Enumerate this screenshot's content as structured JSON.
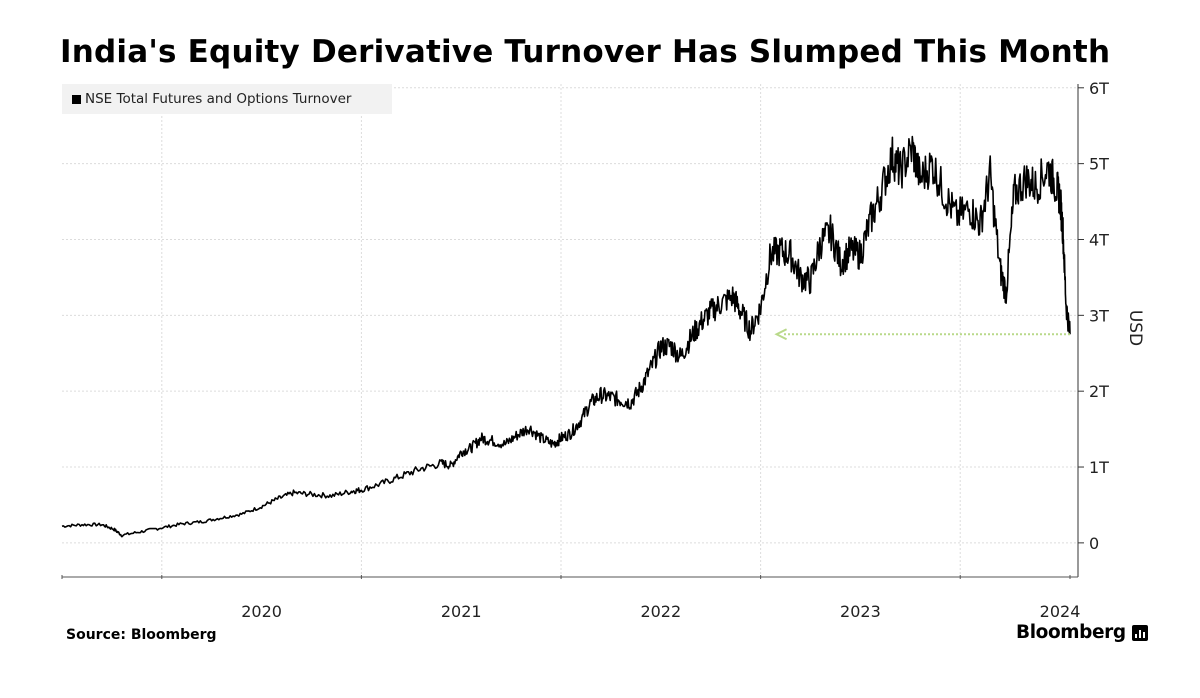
{
  "chart_data": {
    "type": "line",
    "title": "India's Equity Derivative Turnover Has Slumped This Month",
    "ylabel": "USD",
    "xlabel": "",
    "ylim": [
      -0.45,
      6.05
    ],
    "y_ticks": [
      {
        "value": 0,
        "label": "0"
      },
      {
        "value": 1,
        "label": "1T"
      },
      {
        "value": 2,
        "label": "2T"
      },
      {
        "value": 3,
        "label": "3T"
      },
      {
        "value": 4,
        "label": "4T"
      },
      {
        "value": 5,
        "label": "5T"
      },
      {
        "value": 6,
        "label": "6T"
      }
    ],
    "x_ticks": [
      {
        "value": 2020,
        "label": "2020"
      },
      {
        "value": 2021,
        "label": "2021"
      },
      {
        "value": 2022,
        "label": "2022"
      },
      {
        "value": 2023,
        "label": "2023"
      },
      {
        "value": 2024,
        "label": "2024"
      }
    ],
    "xlim": [
      2019.5,
      2024.55
    ],
    "grid": true,
    "legend_position": "top-left",
    "series": [
      {
        "name": "NSE Total Futures and Options Turnover",
        "color": "#000000",
        "points": [
          [
            2019.5,
            0.22
          ],
          [
            2019.6,
            0.24
          ],
          [
            2019.7,
            0.24
          ],
          [
            2019.76,
            0.18
          ],
          [
            2019.8,
            0.1
          ],
          [
            2019.9,
            0.15
          ],
          [
            2020.0,
            0.2
          ],
          [
            2020.1,
            0.25
          ],
          [
            2020.2,
            0.28
          ],
          [
            2020.3,
            0.33
          ],
          [
            2020.4,
            0.38
          ],
          [
            2020.5,
            0.48
          ],
          [
            2020.58,
            0.58
          ],
          [
            2020.66,
            0.66
          ],
          [
            2020.75,
            0.64
          ],
          [
            2020.85,
            0.62
          ],
          [
            2020.95,
            0.68
          ],
          [
            2021.0,
            0.7
          ],
          [
            2021.1,
            0.78
          ],
          [
            2021.2,
            0.88
          ],
          [
            2021.3,
            0.98
          ],
          [
            2021.4,
            1.05
          ],
          [
            2021.45,
            1.02
          ],
          [
            2021.5,
            1.2
          ],
          [
            2021.55,
            1.25
          ],
          [
            2021.6,
            1.38
          ],
          [
            2021.65,
            1.35
          ],
          [
            2021.72,
            1.3
          ],
          [
            2021.78,
            1.42
          ],
          [
            2021.84,
            1.52
          ],
          [
            2021.9,
            1.38
          ],
          [
            2021.96,
            1.3
          ],
          [
            2022.0,
            1.38
          ],
          [
            2022.05,
            1.45
          ],
          [
            2022.1,
            1.62
          ],
          [
            2022.15,
            1.85
          ],
          [
            2022.2,
            1.95
          ],
          [
            2022.25,
            1.92
          ],
          [
            2022.3,
            1.88
          ],
          [
            2022.35,
            1.85
          ],
          [
            2022.4,
            2.05
          ],
          [
            2022.45,
            2.3
          ],
          [
            2022.5,
            2.58
          ],
          [
            2022.55,
            2.6
          ],
          [
            2022.6,
            2.45
          ],
          [
            2022.65,
            2.7
          ],
          [
            2022.7,
            2.9
          ],
          [
            2022.75,
            3.05
          ],
          [
            2022.8,
            3.15
          ],
          [
            2022.86,
            3.25
          ],
          [
            2022.9,
            3.05
          ],
          [
            2022.95,
            2.8
          ],
          [
            2023.0,
            3.1
          ],
          [
            2023.05,
            3.8
          ],
          [
            2023.1,
            3.85
          ],
          [
            2023.15,
            3.8
          ],
          [
            2023.2,
            3.5
          ],
          [
            2023.25,
            3.45
          ],
          [
            2023.3,
            3.95
          ],
          [
            2023.35,
            4.1
          ],
          [
            2023.4,
            3.7
          ],
          [
            2023.45,
            3.85
          ],
          [
            2023.5,
            3.8
          ],
          [
            2023.55,
            4.25
          ],
          [
            2023.6,
            4.6
          ],
          [
            2023.66,
            5.1
          ],
          [
            2023.7,
            4.9
          ],
          [
            2023.76,
            5.2
          ],
          [
            2023.8,
            4.8
          ],
          [
            2023.86,
            5.0
          ],
          [
            2023.92,
            4.6
          ],
          [
            2023.98,
            4.3
          ],
          [
            2024.05,
            4.4
          ],
          [
            2024.1,
            4.2
          ],
          [
            2024.15,
            4.85
          ],
          [
            2024.2,
            3.6
          ],
          [
            2024.23,
            3.3
          ],
          [
            2024.27,
            4.6
          ],
          [
            2024.33,
            4.8
          ],
          [
            2024.38,
            4.7
          ],
          [
            2024.44,
            4.95
          ],
          [
            2024.48,
            4.7
          ],
          [
            2024.5,
            4.55
          ],
          [
            2024.515,
            4.1
          ],
          [
            2024.53,
            3.15
          ],
          [
            2024.55,
            2.75
          ]
        ]
      }
    ],
    "annotations": [
      {
        "type": "arrow",
        "color": "#b9d98a",
        "from": [
          2024.55,
          2.75
        ],
        "to": [
          2023.08,
          2.75
        ]
      }
    ]
  },
  "footer": {
    "source": "Source: Bloomberg",
    "brand": "Bloomberg"
  }
}
